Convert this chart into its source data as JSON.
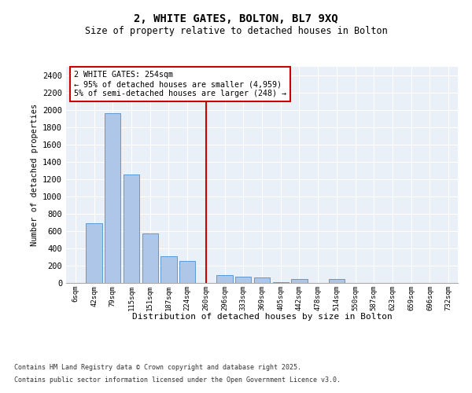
{
  "title": "2, WHITE GATES, BOLTON, BL7 9XQ",
  "subtitle": "Size of property relative to detached houses in Bolton",
  "xlabel": "Distribution of detached houses by size in Bolton",
  "ylabel": "Number of detached properties",
  "bar_color": "#aec6e8",
  "bar_edge_color": "#5b9bd5",
  "vline_color": "#cc0000",
  "annotation_title": "2 WHITE GATES: 254sqm",
  "annotation_line1": "← 95% of detached houses are smaller (4,959)",
  "annotation_line2": "5% of semi-detached houses are larger (248) →",
  "annotation_box_color": "#cc0000",
  "background_color": "#eaf0f8",
  "grid_color": "#ffffff",
  "categories": [
    "6sqm",
    "42sqm",
    "79sqm",
    "115sqm",
    "151sqm",
    "187sqm",
    "224sqm",
    "260sqm",
    "296sqm",
    "333sqm",
    "369sqm",
    "405sqm",
    "442sqm",
    "478sqm",
    "514sqm",
    "550sqm",
    "587sqm",
    "623sqm",
    "659sqm",
    "696sqm",
    "732sqm"
  ],
  "values": [
    0,
    690,
    1960,
    1250,
    570,
    310,
    255,
    0,
    90,
    70,
    60,
    5,
    50,
    0,
    45,
    0,
    0,
    0,
    0,
    0,
    0
  ],
  "ylim": [
    0,
    2500
  ],
  "yticks": [
    0,
    200,
    400,
    600,
    800,
    1000,
    1200,
    1400,
    1600,
    1800,
    2000,
    2200,
    2400
  ],
  "footnote1": "Contains HM Land Registry data © Crown copyright and database right 2025.",
  "footnote2": "Contains public sector information licensed under the Open Government Licence v3.0."
}
